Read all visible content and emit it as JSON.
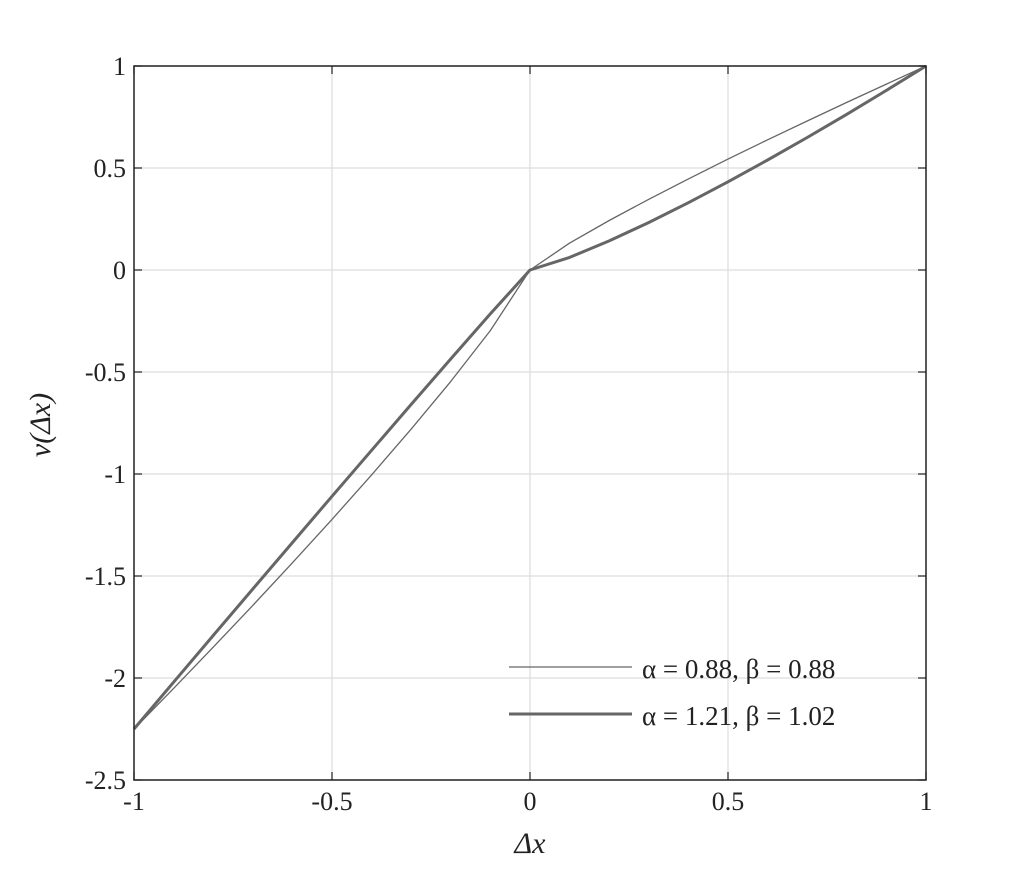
{
  "chart_data": {
    "type": "line",
    "xlabel": "Δx",
    "ylabel": "v(Δx)",
    "xlim": [
      -1,
      1
    ],
    "ylim": [
      -2.5,
      1
    ],
    "xticks": [
      "-1",
      "-0.5",
      "0",
      "0.5",
      "1"
    ],
    "yticks": [
      "1",
      "0.5",
      "0",
      "-0.5",
      "-1",
      "-1.5",
      "-2",
      "-2.5"
    ],
    "grid": true,
    "legend_position": "bottom-right",
    "line_color": "#666666",
    "x": [
      -1,
      -0.9,
      -0.8,
      -0.7,
      -0.6,
      -0.5,
      -0.4,
      -0.3,
      -0.2,
      -0.1,
      0,
      0.1,
      0.2,
      0.3,
      0.4,
      0.5,
      0.6,
      0.7,
      0.8,
      0.9,
      1
    ],
    "series": [
      {
        "name": "α = 0.88, β = 0.88",
        "style": "thin",
        "values": [
          -2.25,
          -2.0509,
          -1.8488,
          -1.6439,
          -1.4355,
          -1.2227,
          -1.0046,
          -0.7799,
          -0.5459,
          -0.2966,
          0,
          0.1318,
          0.2426,
          0.3466,
          0.4465,
          0.5434,
          0.638,
          0.7306,
          0.8217,
          0.9115,
          1
        ]
      },
      {
        "name": "α = 1.21, β = 1.02",
        "style": "thick",
        "values": [
          -2.25,
          -2.0207,
          -1.7919,
          -1.5638,
          -1.3363,
          -1.1095,
          -0.8838,
          -0.6589,
          -0.4358,
          -0.2149,
          0,
          0.0617,
          0.1426,
          0.233,
          0.33,
          0.4323,
          0.539,
          0.6495,
          0.7634,
          0.8803,
          1
        ]
      }
    ]
  }
}
